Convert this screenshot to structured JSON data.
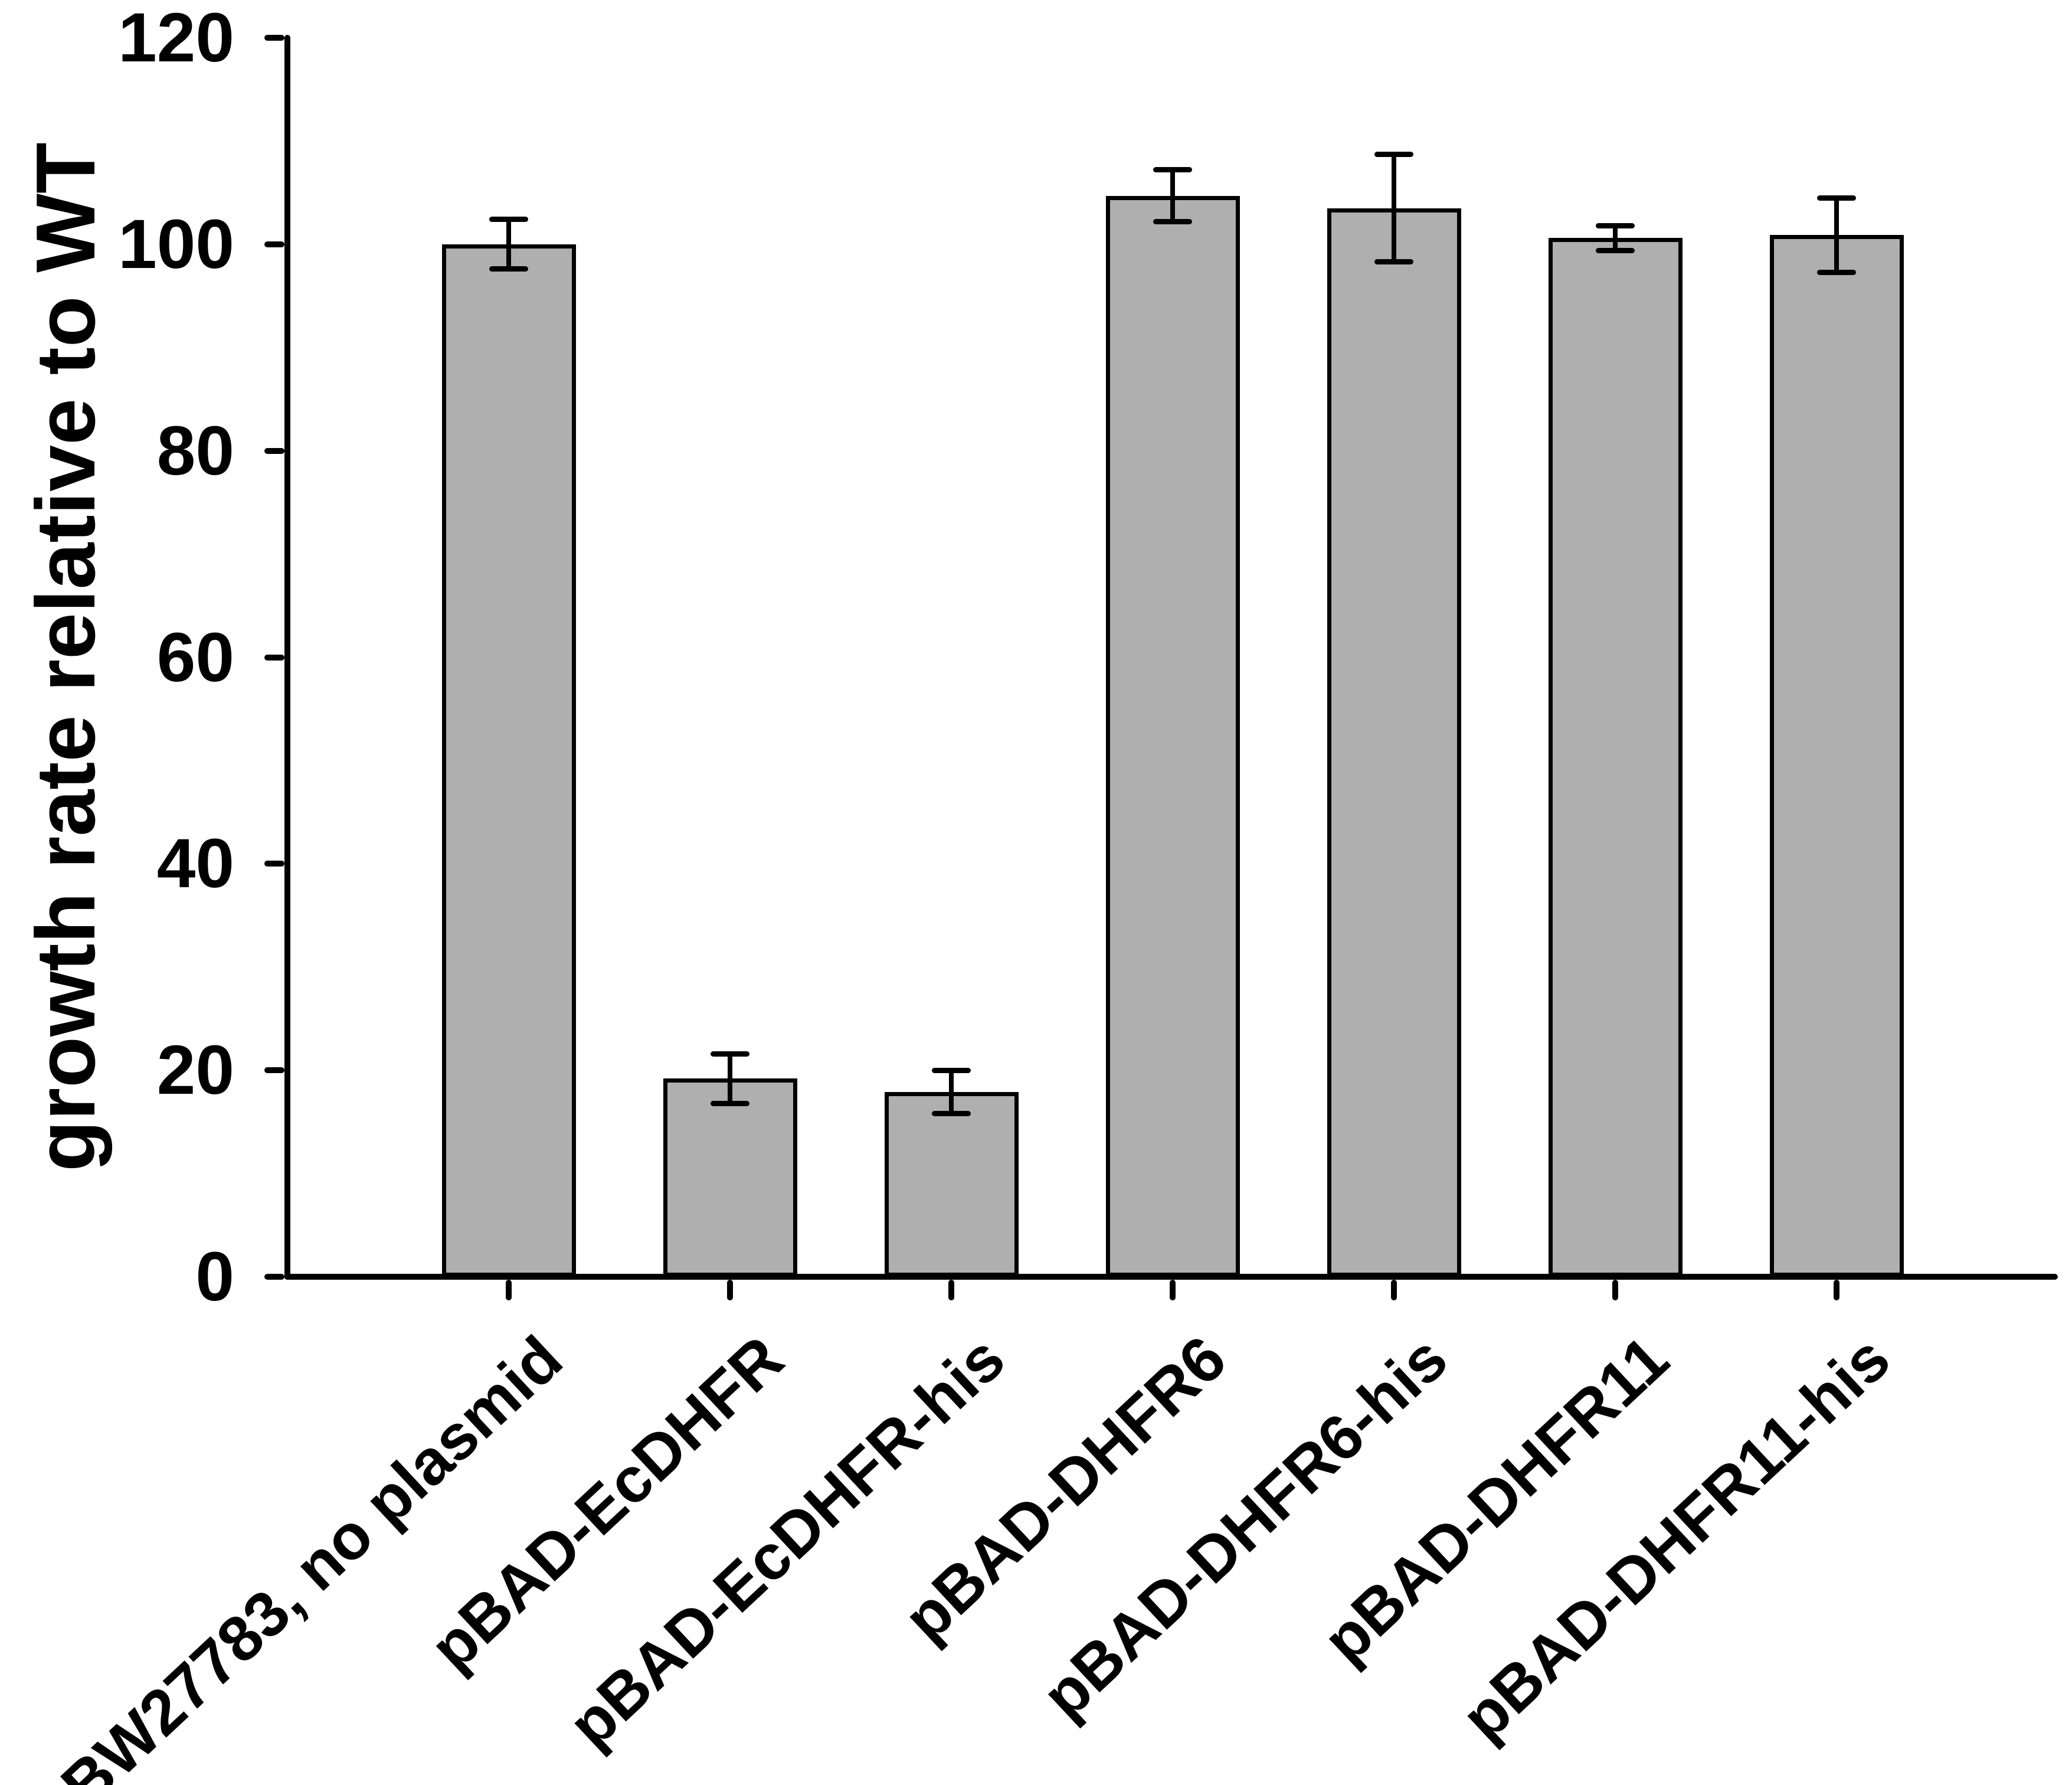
{
  "figure": {
    "background_color": "#ffffff",
    "axis_color": "#000000",
    "text_color": "#000000"
  },
  "chart_data": {
    "type": "bar",
    "title": "",
    "xlabel": "",
    "ylabel": "growth rate relative to WT",
    "ylim": [
      0,
      120
    ],
    "yticks": [
      0,
      20,
      40,
      60,
      80,
      100,
      120
    ],
    "grid": false,
    "legend": null,
    "bar_fill_color": "#afafaf",
    "bar_edge_color": "#000000",
    "error_bar_color": "#000000",
    "categories": [
      "BW27783, no plasmid",
      "pBAD-EcDHFR",
      "pBAD-EcDHFR-his",
      "pBAD-DHFR6",
      "pBAD-DHFR6-his",
      "pBAD-DHFR11",
      "pBAD-DHFR11-his"
    ],
    "values": [
      100.0,
      19.2,
      17.9,
      104.7,
      103.5,
      100.6,
      100.9
    ],
    "errors": [
      2.4,
      2.4,
      2.1,
      2.5,
      5.2,
      1.2,
      3.6
    ]
  }
}
